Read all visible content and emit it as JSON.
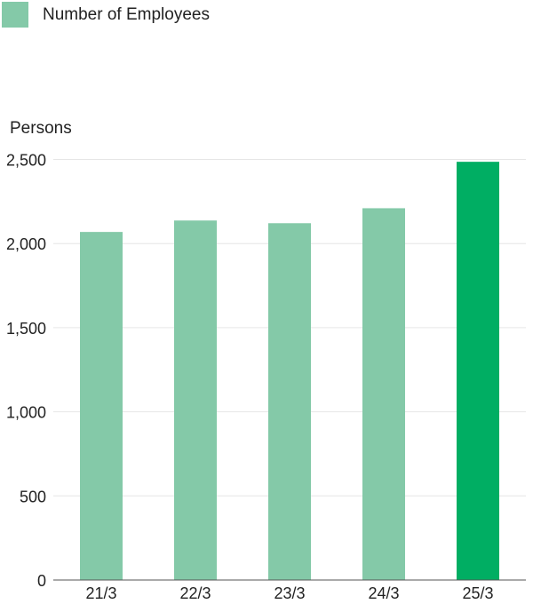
{
  "chart_data": {
    "type": "bar",
    "title": "",
    "legend": [
      {
        "label": "Number of Employees",
        "color": "#84c9a8"
      }
    ],
    "legend_position": "top-left",
    "ylabel": "Persons",
    "xlabel": "",
    "categories": [
      "21/3",
      "22/3",
      "23/3",
      "24/3",
      "25/3"
    ],
    "values": [
      2069,
      2137,
      2121,
      2210,
      2486
    ],
    "colors": [
      "#84c9a8",
      "#84c9a8",
      "#84c9a8",
      "#84c9a8",
      "#00ae63"
    ],
    "ylim": [
      0,
      2500
    ],
    "yticks": [
      0,
      500,
      1000,
      1500,
      2000,
      2500
    ],
    "ytick_labels": [
      "0",
      "500",
      "1,000",
      "1,500",
      "2,000",
      "2,500"
    ],
    "grid": true
  }
}
